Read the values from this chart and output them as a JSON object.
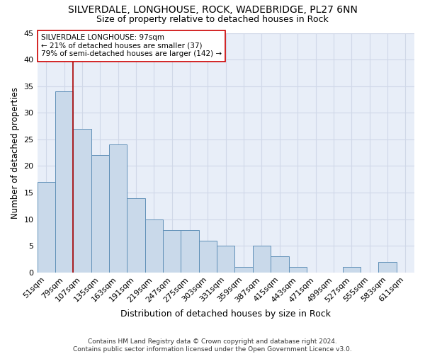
{
  "title1": "SILVERDALE, LONGHOUSE, ROCK, WADEBRIDGE, PL27 6NN",
  "title2": "Size of property relative to detached houses in Rock",
  "xlabel": "Distribution of detached houses by size in Rock",
  "ylabel": "Number of detached properties",
  "categories": [
    "51sqm",
    "79sqm",
    "107sqm",
    "135sqm",
    "163sqm",
    "191sqm",
    "219sqm",
    "247sqm",
    "275sqm",
    "303sqm",
    "331sqm",
    "359sqm",
    "387sqm",
    "415sqm",
    "443sqm",
    "471sqm",
    "499sqm",
    "527sqm",
    "555sqm",
    "583sqm",
    "611sqm"
  ],
  "values": [
    17,
    34,
    27,
    22,
    24,
    14,
    10,
    8,
    8,
    6,
    5,
    1,
    5,
    3,
    1,
    0,
    0,
    1,
    0,
    2,
    0
  ],
  "bar_color": "#c9d9ea",
  "bar_edge_color": "#6090b8",
  "bar_edge_width": 0.7,
  "vline_x_index": 1.5,
  "vline_color": "#aa0000",
  "annotation_text": "SILVERDALE LONGHOUSE: 97sqm\n← 21% of detached houses are smaller (37)\n79% of semi-detached houses are larger (142) →",
  "annotation_box_color": "#ffffff",
  "annotation_box_edge": "#cc0000",
  "ylim": [
    0,
    45
  ],
  "yticks": [
    0,
    5,
    10,
    15,
    20,
    25,
    30,
    35,
    40,
    45
  ],
  "bg_color": "#e8eef8",
  "grid_color": "#d0d8e8",
  "footer": "Contains HM Land Registry data © Crown copyright and database right 2024.\nContains public sector information licensed under the Open Government Licence v3.0.",
  "title1_fontsize": 10,
  "title2_fontsize": 9,
  "xlabel_fontsize": 9,
  "ylabel_fontsize": 8.5,
  "tick_fontsize": 8,
  "annotation_fontsize": 7.5,
  "footer_fontsize": 6.5
}
